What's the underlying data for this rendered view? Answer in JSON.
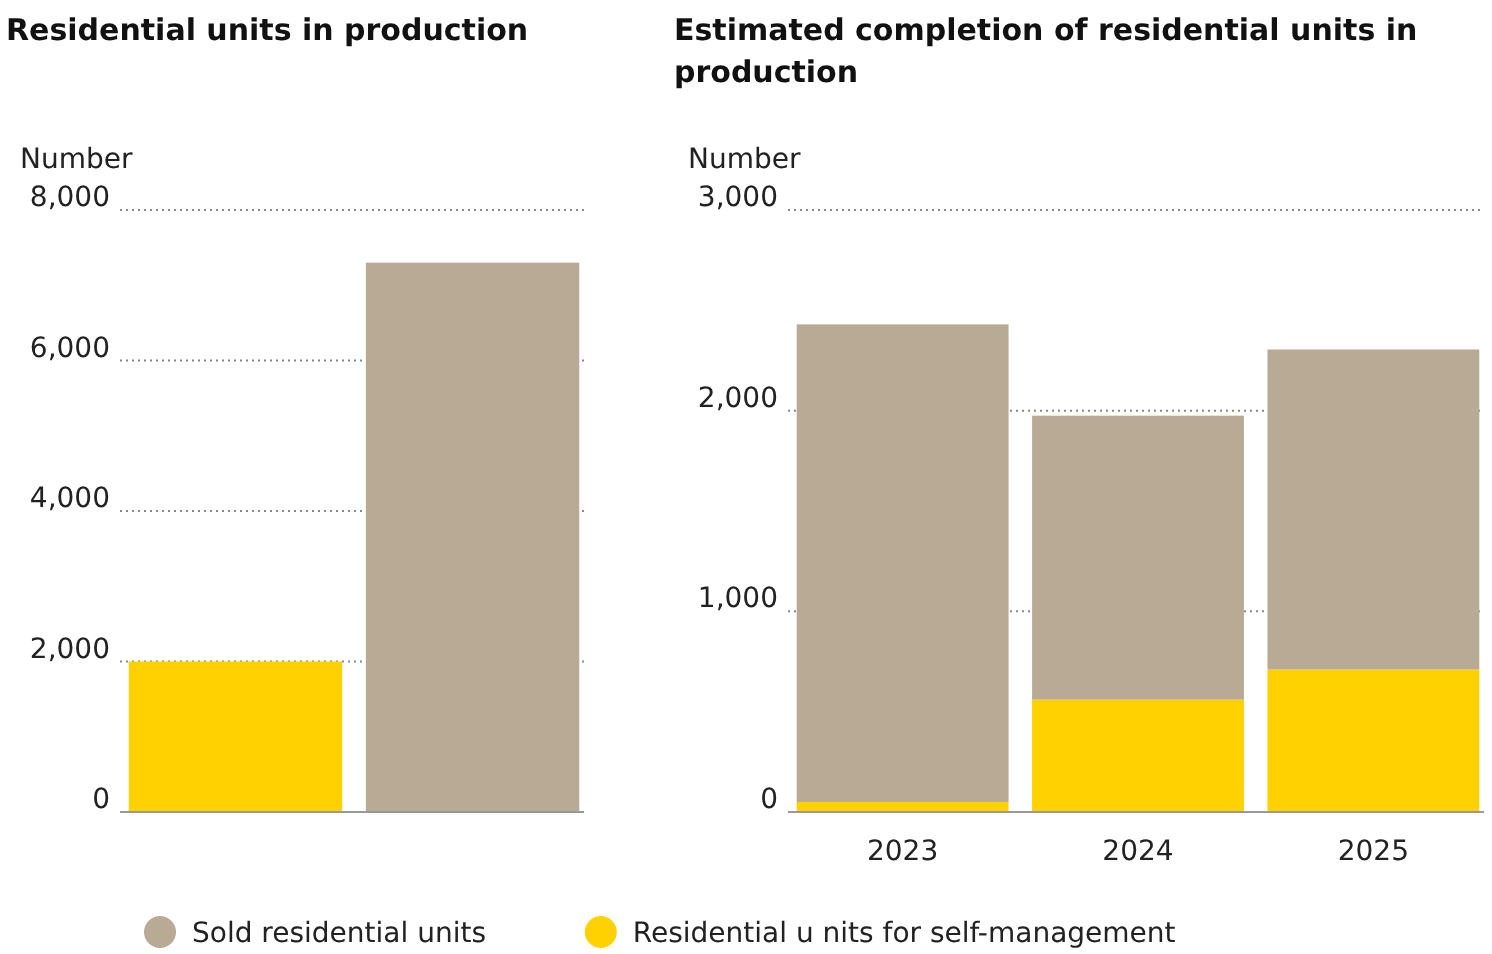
{
  "chart_data": [
    {
      "type": "bar",
      "title": "Residential units in production",
      "ylabel": "Number",
      "categories": [
        null,
        null
      ],
      "stacked": true,
      "ylim": [
        0,
        8000
      ],
      "yticks": [
        {
          "value": 0,
          "label": "0"
        },
        {
          "value": 2000,
          "label": "2,000"
        },
        {
          "value": 4000,
          "label": "4,000"
        },
        {
          "value": 6000,
          "label": "6,000"
        },
        {
          "value": 8000,
          "label": "8,000"
        }
      ],
      "grid": "y",
      "series": [
        {
          "color": "#ffd100",
          "values": [
            2000,
            null
          ]
        },
        {
          "color": "#b8aa94",
          "values": [
            null,
            7300
          ]
        }
      ]
    },
    {
      "type": "bar",
      "title": "Estimated completion of residential units in production",
      "ylabel": "Number",
      "categories": [
        "2023",
        "2024",
        "2025"
      ],
      "stacked": true,
      "ylim": [
        0,
        3000
      ],
      "yticks": [
        {
          "value": 0,
          "label": "0"
        },
        {
          "value": 1000,
          "label": "1,000"
        },
        {
          "value": 2000,
          "label": "2,000"
        },
        {
          "value": 3000,
          "label": "3,000"
        }
      ],
      "grid": "y",
      "legend": "bottom",
      "series": [
        {
          "name": "Residential u nits for self-management",
          "color": "#ffd100",
          "values": [
            50,
            560,
            710
          ]
        },
        {
          "name": "Sold residential units",
          "color": "#b8aa94",
          "values": [
            2380,
            1415,
            1595
          ]
        }
      ]
    }
  ]
}
